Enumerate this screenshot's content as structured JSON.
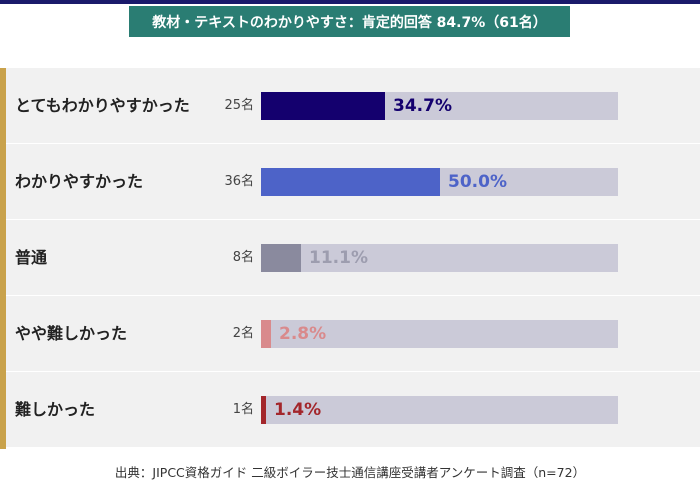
{
  "title": "教材・テキストのわかりやすさ：肯定的回答 84.7%（61名）",
  "source": "出典：JIPCC資格ガイド 二級ボイラー技士通信講座受講者アンケート調査（n=72）",
  "chart_data": {
    "type": "bar",
    "orientation": "horizontal",
    "title": "教材・テキストのわかりやすさ：肯定的回答 84.7%（61名）",
    "categories": [
      "とてもわかりやすかった",
      "わかりやすかった",
      "普通",
      "やや難しかった",
      "難しかった"
    ],
    "counts": [
      "25名",
      "36名",
      "8名",
      "2名",
      "1名"
    ],
    "value_labels": [
      "34.7%",
      "50.0%",
      "11.1%",
      "2.8%",
      "1.4%"
    ],
    "values": [
      34.7,
      50.0,
      11.1,
      2.8,
      1.4
    ],
    "xlim": [
      0,
      100
    ],
    "bar_colors": [
      "#14006e",
      "#4d63c8",
      "#8a8a9e",
      "#d98a8c",
      "#a3262b"
    ],
    "label_colors": [
      "#14006e",
      "#4d63c8",
      "#9d9daf",
      "#d98a8c",
      "#a3262b"
    ],
    "track_color": "#cbcad8",
    "grid": false,
    "legend": "none"
  }
}
